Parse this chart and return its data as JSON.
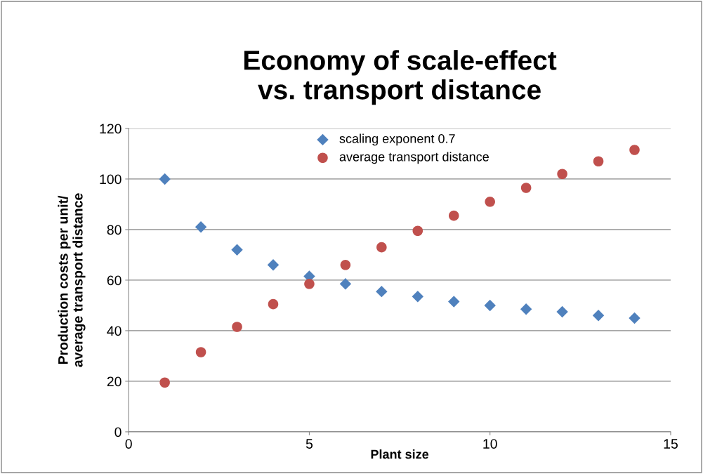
{
  "chart_data": {
    "type": "scatter",
    "title": "Economy of scale-effect\nvs. transport distance",
    "xlabel": "Plant size",
    "ylabel": "Production costs per unit/\naverage transport distance",
    "series": [
      {
        "name": "scaling exponent 0.7",
        "color": "#4f81bd",
        "marker": "diamond",
        "x": [
          1,
          2,
          3,
          4,
          5,
          6,
          7,
          8,
          9,
          10,
          11,
          12,
          13,
          14
        ],
        "values": [
          100,
          81,
          72,
          66,
          61.5,
          58.5,
          55.5,
          53.5,
          51.5,
          50,
          48.5,
          47.5,
          46,
          45
        ]
      },
      {
        "name": "average transport distance",
        "color": "#c0504d",
        "marker": "circle",
        "x": [
          1,
          2,
          3,
          4,
          5,
          6,
          7,
          8,
          9,
          10,
          11,
          12,
          13,
          14
        ],
        "values": [
          19.5,
          31.5,
          41.5,
          50.5,
          58.5,
          66,
          73,
          79.5,
          85.5,
          91,
          96.5,
          102,
          107,
          111.5
        ]
      }
    ],
    "xlim": [
      0,
      15
    ],
    "xticks": [
      0,
      5,
      10,
      15
    ],
    "ylim": [
      0,
      120
    ],
    "yticks": [
      0,
      20,
      40,
      60,
      80,
      100,
      120
    ],
    "grid": "y",
    "legend": "top"
  }
}
